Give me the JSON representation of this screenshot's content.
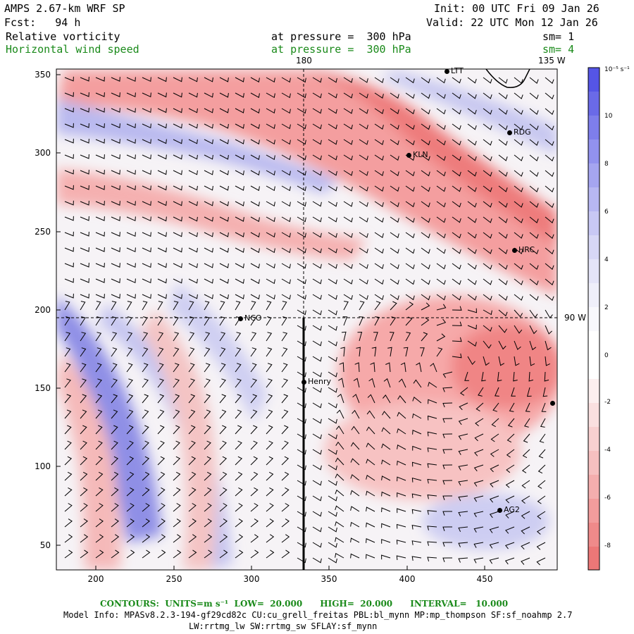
{
  "header": {
    "model": "AMPS 2.67-km WRF SP",
    "init": "Init: 00 UTC Fri 09 Jan 26",
    "fcst": "Fcst:   94 h",
    "valid": "Valid: 22 UTC Mon 12 Jan 26",
    "field1": "Relative vorticity",
    "field1_level": "at pressure =  300 hPa",
    "field1_sm": "sm= 1",
    "field2": "Horizontal wind speed",
    "field2_level": "at pressure =  300 hPa",
    "field2_sm": "sm= 4"
  },
  "map": {
    "meridian_labels": [
      "180",
      "135 W",
      "90 W"
    ],
    "x_ticks": [
      "200",
      "250",
      "300",
      "350",
      "400",
      "450"
    ],
    "y_ticks": [
      "350",
      "300",
      "250",
      "200",
      "150",
      "100",
      "50"
    ],
    "stations": [
      "LTT",
      "RDG",
      "KLN",
      "HRC",
      "NCO",
      "Henry",
      "AG2"
    ]
  },
  "colorbar": {
    "unit": "10⁻⁵ s⁻¹",
    "labels": [
      "10",
      "8",
      "6",
      "4",
      "2",
      "0",
      "-2",
      "-4",
      "-6",
      "-8"
    ]
  },
  "footer": {
    "contours": "CONTOURS:  UNITS=m s⁻¹  LOW=  20.000      HIGH=  20.000      INTERVAL=   10.000",
    "model_info": "Model Info: MPASv8.2.3-194-gf29cd82c CU:cu_grell_freitas PBL:bl_mynn MP:mp_thompson SF:sf_noahmp 2.7",
    "model_info2": "LW:rrtmg_lw SW:rrtmg_sw SFLAY:sf_mynn"
  }
}
